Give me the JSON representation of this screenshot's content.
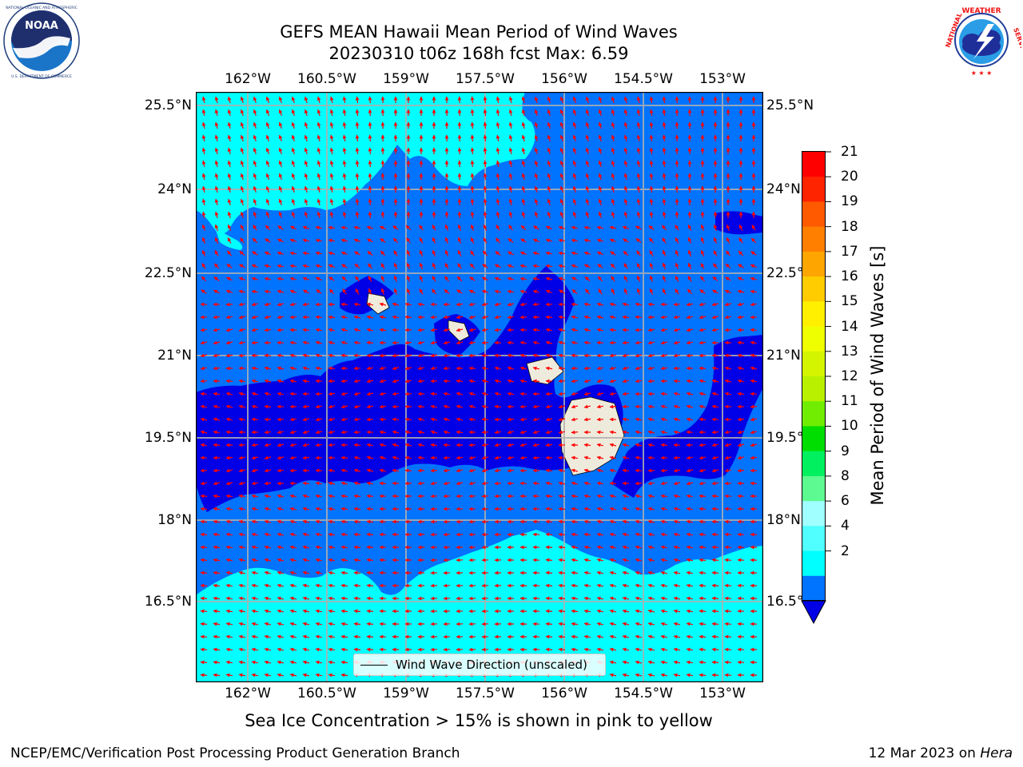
{
  "title": {
    "line1": "GEFS MEAN Hawaii Mean Period of Wind Waves",
    "line2": "20230310 t06z 168h fcst   Max: 6.59"
  },
  "logos": {
    "left": {
      "text": "NOAA",
      "ring_text": "NATIONAL OCEANIC AND ATMOSPHERIC ADMINISTRATION · U.S. DEPARTMENT OF COMMERCE"
    },
    "right": {
      "ring_text": "NATIONAL WEATHER SERVICE"
    }
  },
  "map": {
    "lon_labels": [
      "162°W",
      "160.5°W",
      "159°W",
      "157.5°W",
      "156°W",
      "154.5°W",
      "153°W"
    ],
    "lat_labels_left": [
      "25.5°N",
      "24°N",
      "22.5°N",
      "21°N",
      "19.5°N",
      "18°N",
      "16.5°N"
    ],
    "lat_labels_right": [
      "25.5°N",
      "24°N",
      "22.5°N",
      "21°N",
      "19.5°N",
      "18°N",
      "16.5°N"
    ],
    "legend_label": "Wind Wave Direction (unscaled)",
    "colors": {
      "level_2_4": "#0073ff",
      "level_4_6": "#00ffff",
      "level_below_2": "#0000e6",
      "land": "#efebdc",
      "arrows": "#ff0000",
      "grid": "#b0b0b0"
    }
  },
  "colorbar": {
    "label": "Mean Period of Wind Waves [s]",
    "ticks": [
      "21",
      "20",
      "19",
      "18",
      "17",
      "16",
      "15",
      "14",
      "13",
      "12",
      "11",
      "10",
      "9",
      "8",
      "6",
      "4",
      "2"
    ],
    "colors": [
      "#ff0000",
      "#ff2400",
      "#ff5a00",
      "#ff7f00",
      "#ffa500",
      "#ffcc00",
      "#fff000",
      "#f0ff00",
      "#d4f500",
      "#b8f000",
      "#70ed00",
      "#00dd00",
      "#00f060",
      "#5cfa90",
      "#a0ffff",
      "#50ffff",
      "#00ffff",
      "#0073ff"
    ],
    "under_color": "#0000e6"
  },
  "footnote": "Sea Ice Concentration > 15% is shown in pink to yellow",
  "credit_left": "NCEP/EMC/Verification Post Processing Product Generation Branch",
  "credit_right_prefix": "12 Mar 2023 on ",
  "credit_right_host": "Hera"
}
